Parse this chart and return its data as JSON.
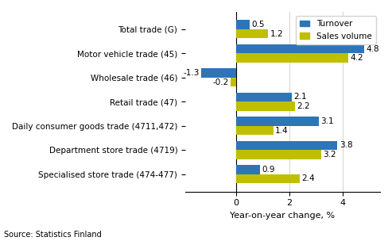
{
  "categories": [
    "Specialised store trade (474-477)",
    "Department store trade (4719)",
    "Daily consumer goods trade (4711,472)",
    "Retail trade (47)",
    "Wholesale trade (46)",
    "Motor vehicle trade (45)",
    "Total trade (G)"
  ],
  "turnover": [
    0.9,
    3.8,
    3.1,
    2.1,
    -1.3,
    4.8,
    0.5
  ],
  "sales_volume": [
    2.4,
    3.2,
    1.4,
    2.2,
    -0.2,
    4.2,
    1.2
  ],
  "turnover_color": "#2E75B6",
  "sales_volume_color": "#BFBF00",
  "xlabel": "Year-on-year change, %",
  "source": "Source: Statistics Finland",
  "xlim": [
    -1.9,
    5.4
  ],
  "xticks": [
    0,
    2,
    4
  ],
  "bar_height": 0.38,
  "background_color": "#ffffff",
  "legend_labels": [
    "Turnover",
    "Sales volume"
  ]
}
